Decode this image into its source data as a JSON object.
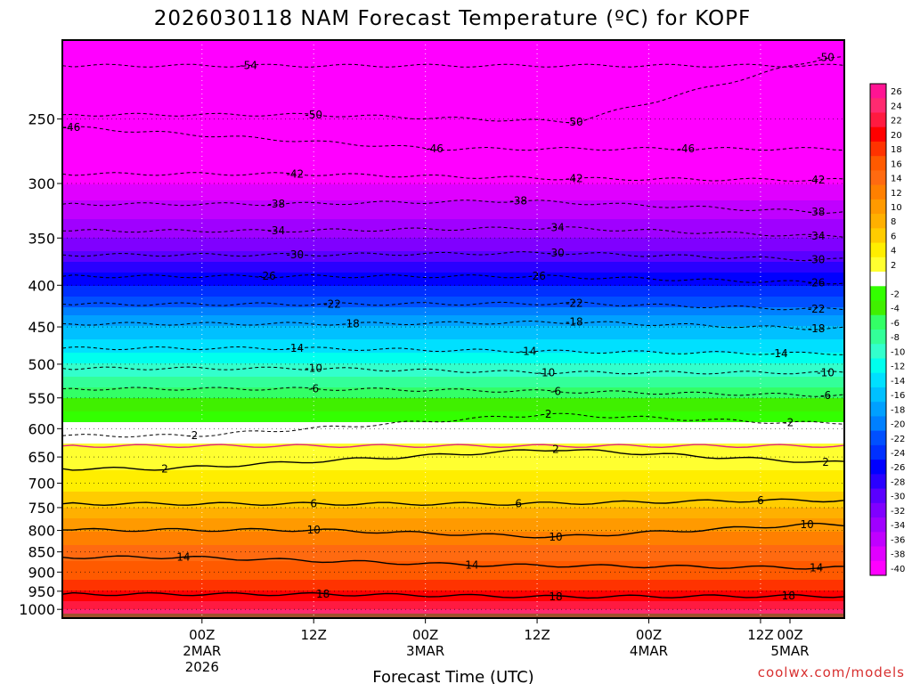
{
  "chart_data": {
    "type": "heatmap",
    "title": "2026030118 NAM Forecast Temperature (ºC) for KOPF",
    "xlabel": "Forecast Time (UTC)",
    "ylabel": "",
    "credit": "coolwx.com/models",
    "y_axis": {
      "scale": "pressure (log, inverted)",
      "ticks": [
        250,
        300,
        350,
        400,
        450,
        500,
        550,
        600,
        650,
        700,
        750,
        800,
        850,
        900,
        950,
        1000
      ],
      "ylim": [
        200,
        1025
      ]
    },
    "x_axis": {
      "xlim_hours": [
        -9,
        75
      ],
      "ticks": [
        {
          "hour": 6,
          "line1": "00Z",
          "line2": "2MAR",
          "line3": "2026"
        },
        {
          "hour": 18,
          "line1": "12Z",
          "line2": "",
          "line3": ""
        },
        {
          "hour": 30,
          "line1": "00Z",
          "line2": "3MAR",
          "line3": ""
        },
        {
          "hour": 42,
          "line1": "12Z",
          "line2": "",
          "line3": ""
        },
        {
          "hour": 54,
          "line1": "00Z",
          "line2": "4MAR",
          "line3": ""
        },
        {
          "hour": 66,
          "line1": "12Z",
          "line2": "",
          "line3": ""
        },
        {
          "hour": 78,
          "line1": "00Z",
          "line2": "5MAR",
          "line3": ""
        }
      ]
    },
    "grid": true,
    "colorbar": {
      "position": "right",
      "bins": [
        {
          "label": "26",
          "color": "#ff1493"
        },
        {
          "label": "24",
          "color": "#ff2a70"
        },
        {
          "label": "22",
          "color": "#ff1a40"
        },
        {
          "label": "20",
          "color": "#ff0000"
        },
        {
          "label": "18",
          "color": "#ff3300"
        },
        {
          "label": "16",
          "color": "#ff5a00"
        },
        {
          "label": "14",
          "color": "#ff6a10"
        },
        {
          "label": "12",
          "color": "#ff8000"
        },
        {
          "label": "10",
          "color": "#ff9a00"
        },
        {
          "label": "8",
          "color": "#ffb000"
        },
        {
          "label": "6",
          "color": "#ffcc00"
        },
        {
          "label": "4",
          "color": "#ffee00"
        },
        {
          "label": "2",
          "color": "#ffff30"
        },
        {
          "label": "",
          "color": "#ffffff"
        },
        {
          "label": "-2",
          "color": "#33ff00"
        },
        {
          "label": "-4",
          "color": "#40f000"
        },
        {
          "label": "-6",
          "color": "#33ff66"
        },
        {
          "label": "-8",
          "color": "#33ff99"
        },
        {
          "label": "-10",
          "color": "#33ffcc"
        },
        {
          "label": "-12",
          "color": "#00ffee"
        },
        {
          "label": "-14",
          "color": "#00e0ff"
        },
        {
          "label": "-16",
          "color": "#00c0ff"
        },
        {
          "label": "-18",
          "color": "#00a0ff"
        },
        {
          "label": "-20",
          "color": "#0080ff"
        },
        {
          "label": "-22",
          "color": "#0050ff"
        },
        {
          "label": "-24",
          "color": "#0030ff"
        },
        {
          "label": "-26",
          "color": "#0000ff"
        },
        {
          "label": "-28",
          "color": "#2a00ff"
        },
        {
          "label": "-30",
          "color": "#5a00ff"
        },
        {
          "label": "-32",
          "color": "#8000ff"
        },
        {
          "label": "-34",
          "color": "#a000ff"
        },
        {
          "label": "-36",
          "color": "#c000ff"
        },
        {
          "label": "-38",
          "color": "#e000ff"
        },
        {
          "label": "-40",
          "color": "#ff00ff"
        }
      ]
    },
    "ground_color": "#a0522d",
    "temperature_profile": [
      {
        "p": 200,
        "t": -58
      },
      {
        "p": 250,
        "t": -48
      },
      {
        "p": 300,
        "t": -40
      },
      {
        "p": 350,
        "t": -34
      },
      {
        "p": 400,
        "t": -26
      },
      {
        "p": 450,
        "t": -18
      },
      {
        "p": 500,
        "t": -12
      },
      {
        "p": 550,
        "t": -6
      },
      {
        "p": 600,
        "t": -1
      },
      {
        "p": 650,
        "t": 1
      },
      {
        "p": 700,
        "t": 3
      },
      {
        "p": 750,
        "t": 6
      },
      {
        "p": 800,
        "t": 10
      },
      {
        "p": 850,
        "t": 13
      },
      {
        "p": 900,
        "t": 15
      },
      {
        "p": 950,
        "t": 18
      },
      {
        "p": 1000,
        "t": 22
      },
      {
        "p": 1025,
        "t": 24
      }
    ],
    "contours": [
      {
        "level": -54,
        "style": "dashed",
        "hour": 11,
        "p": 215
      },
      {
        "level": -50,
        "style": "dashed",
        "hour": 73,
        "p": 210
      },
      {
        "level": -50,
        "style": "dashed",
        "hour": 18,
        "p": 247
      },
      {
        "level": -50,
        "style": "dashed",
        "hour": 46,
        "p": 252
      },
      {
        "level": -46,
        "style": "dashed",
        "hour": -8,
        "p": 256
      },
      {
        "level": -46,
        "style": "dashed",
        "hour": 31,
        "p": 272
      },
      {
        "level": -46,
        "style": "dashed",
        "hour": 58,
        "p": 272
      },
      {
        "level": -42,
        "style": "dashed",
        "hour": 16,
        "p": 292
      },
      {
        "level": -42,
        "style": "dashed",
        "hour": 46,
        "p": 296
      },
      {
        "level": -42,
        "style": "dashed",
        "hour": 72,
        "p": 297
      },
      {
        "level": -38,
        "style": "dashed",
        "hour": 14,
        "p": 318
      },
      {
        "level": -38,
        "style": "dashed",
        "hour": 40,
        "p": 315
      },
      {
        "level": -38,
        "style": "dashed",
        "hour": 72,
        "p": 325
      },
      {
        "level": -34,
        "style": "dashed",
        "hour": 14,
        "p": 343
      },
      {
        "level": -34,
        "style": "dashed",
        "hour": 44,
        "p": 340
      },
      {
        "level": -34,
        "style": "dashed",
        "hour": 72,
        "p": 348
      },
      {
        "level": -30,
        "style": "dashed",
        "hour": 16,
        "p": 367
      },
      {
        "level": -30,
        "style": "dashed",
        "hour": 44,
        "p": 365
      },
      {
        "level": -30,
        "style": "dashed",
        "hour": 72,
        "p": 372
      },
      {
        "level": -26,
        "style": "dashed",
        "hour": 13,
        "p": 390
      },
      {
        "level": -26,
        "style": "dashed",
        "hour": 42,
        "p": 390
      },
      {
        "level": -26,
        "style": "dashed",
        "hour": 72,
        "p": 397
      },
      {
        "level": -22,
        "style": "dashed",
        "hour": 20,
        "p": 422
      },
      {
        "level": -22,
        "style": "dashed",
        "hour": 46,
        "p": 421
      },
      {
        "level": -22,
        "style": "dashed",
        "hour": 72,
        "p": 428
      },
      {
        "level": -18,
        "style": "dashed",
        "hour": 22,
        "p": 446
      },
      {
        "level": -18,
        "style": "dashed",
        "hour": 46,
        "p": 444
      },
      {
        "level": -18,
        "style": "dashed",
        "hour": 72,
        "p": 452
      },
      {
        "level": -14,
        "style": "dashed",
        "hour": 16,
        "p": 478
      },
      {
        "level": -14,
        "style": "dashed",
        "hour": 41,
        "p": 482
      },
      {
        "level": -14,
        "style": "dashed",
        "hour": 68,
        "p": 485
      },
      {
        "level": -10,
        "style": "dashed",
        "hour": 18,
        "p": 506
      },
      {
        "level": -10,
        "style": "dashed",
        "hour": 43,
        "p": 512
      },
      {
        "level": -10,
        "style": "dashed",
        "hour": 73,
        "p": 512
      },
      {
        "level": -6,
        "style": "dashed",
        "hour": 18,
        "p": 536
      },
      {
        "level": -6,
        "style": "dashed",
        "hour": 44,
        "p": 540
      },
      {
        "level": -6,
        "style": "dashed",
        "hour": 73,
        "p": 546
      },
      {
        "level": -2,
        "style": "dashed",
        "hour": 5,
        "p": 612
      },
      {
        "level": -2,
        "style": "dashed",
        "hour": 43,
        "p": 576
      },
      {
        "level": -2,
        "style": "dashed",
        "hour": 69,
        "p": 590
      },
      {
        "level": 0,
        "style": "magenta",
        "hour": 0,
        "p": 630
      },
      {
        "level": 2,
        "style": "solid",
        "hour": 2,
        "p": 672
      },
      {
        "level": 2,
        "style": "solid",
        "hour": 44,
        "p": 636
      },
      {
        "level": 2,
        "style": "solid",
        "hour": 73,
        "p": 660
      },
      {
        "level": 6,
        "style": "solid",
        "hour": 18,
        "p": 742
      },
      {
        "level": 6,
        "style": "solid",
        "hour": 40,
        "p": 742
      },
      {
        "level": 6,
        "style": "solid",
        "hour": 66,
        "p": 735
      },
      {
        "level": 10,
        "style": "solid",
        "hour": 18,
        "p": 799
      },
      {
        "level": 10,
        "style": "solid",
        "hour": 44,
        "p": 815
      },
      {
        "level": 10,
        "style": "solid",
        "hour": 71,
        "p": 787
      },
      {
        "level": 14,
        "style": "solid",
        "hour": 4,
        "p": 863
      },
      {
        "level": 14,
        "style": "solid",
        "hour": 35,
        "p": 882
      },
      {
        "level": 14,
        "style": "solid",
        "hour": 72,
        "p": 889
      },
      {
        "level": 18,
        "style": "solid",
        "hour": 19,
        "p": 958
      },
      {
        "level": 18,
        "style": "solid",
        "hour": 44,
        "p": 965
      },
      {
        "level": 18,
        "style": "solid",
        "hour": 69,
        "p": 963
      }
    ]
  }
}
